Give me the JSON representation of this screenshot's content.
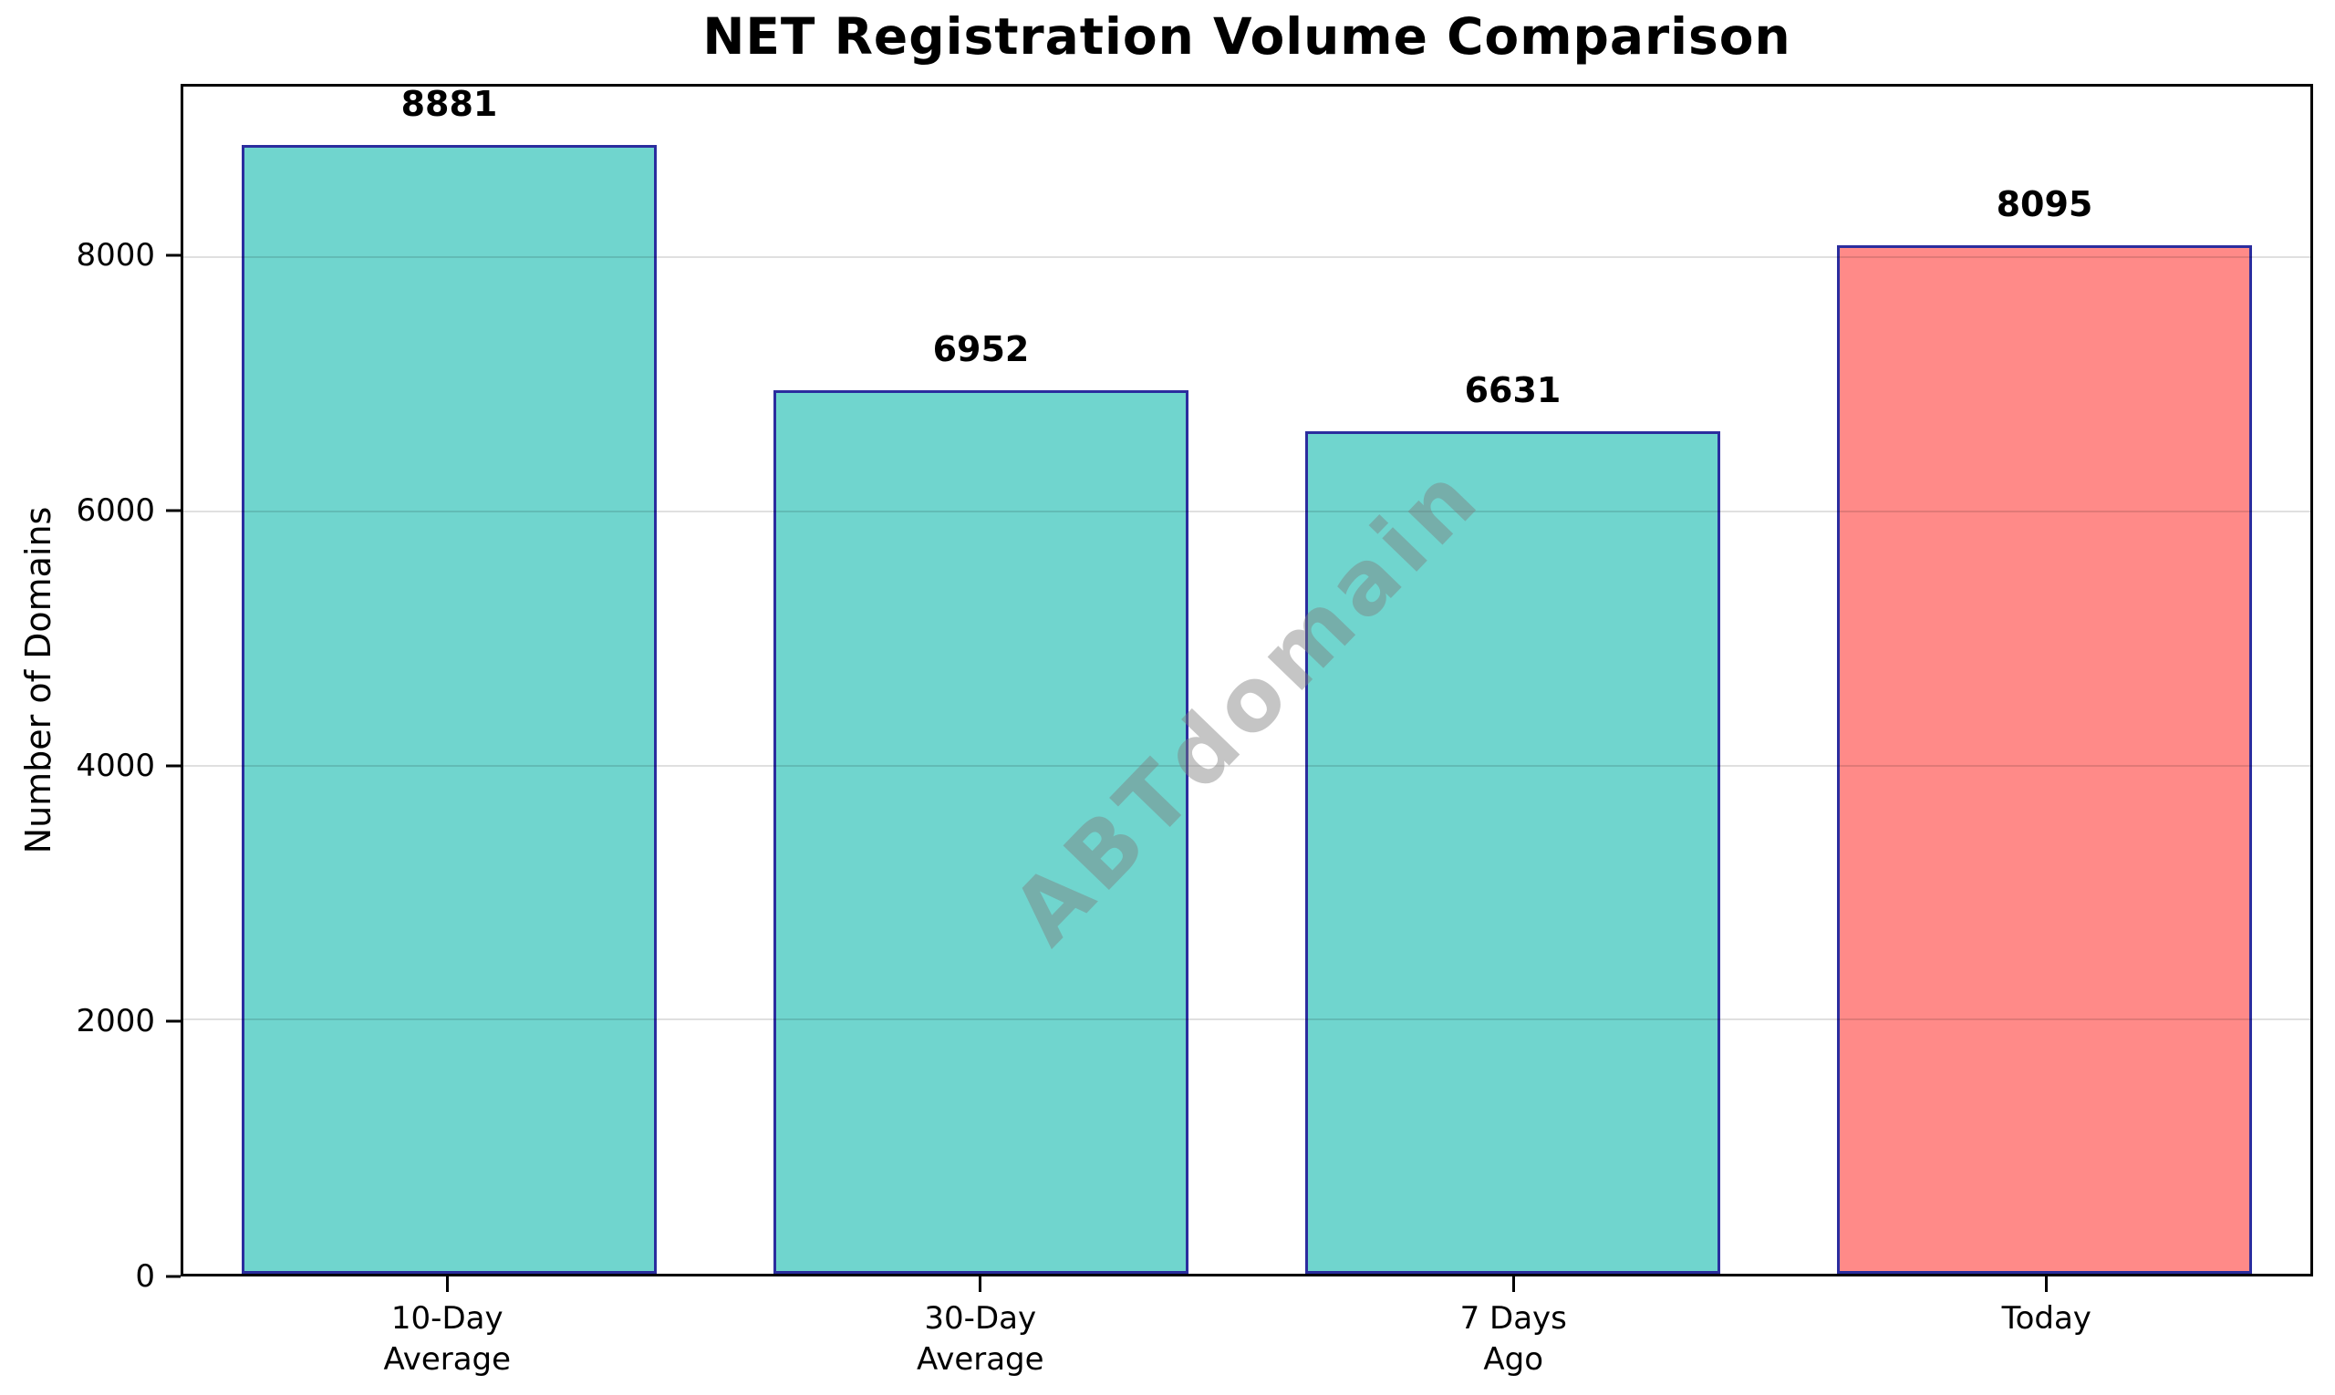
{
  "figure": {
    "watermark_text": "ABTdomain",
    "watermark_color": "rgba(127,127,127,0.45)",
    "background_color": "#ffffff",
    "grid_color": "rgba(0,0,0,0.12)",
    "spine_color": "#000000"
  },
  "chart_data": {
    "type": "bar",
    "title": "NET Registration Volume Comparison",
    "xlabel": "",
    "ylabel": "Number of Domains",
    "categories": [
      "10-Day\nAverage",
      "30-Day\nAverage",
      "7 Days\nAgo",
      "Today"
    ],
    "values": [
      8881,
      6952,
      6631,
      8095
    ],
    "value_labels": [
      "8881",
      "6952",
      "6631",
      "8095"
    ],
    "bar_colors": [
      "#70D5CE",
      "#70D5CE",
      "#70D5CE",
      "#FF8A88"
    ],
    "bar_edge_color": "#2B2D9E",
    "yticks": [
      0,
      2000,
      4000,
      6000,
      8000
    ],
    "ytick_labels": [
      "0",
      "2000",
      "4000",
      "6000",
      "8000"
    ],
    "ylim": [
      0,
      9343
    ],
    "grid": "horizontal-on",
    "legend": "none",
    "watermark": "ABTdomain"
  }
}
